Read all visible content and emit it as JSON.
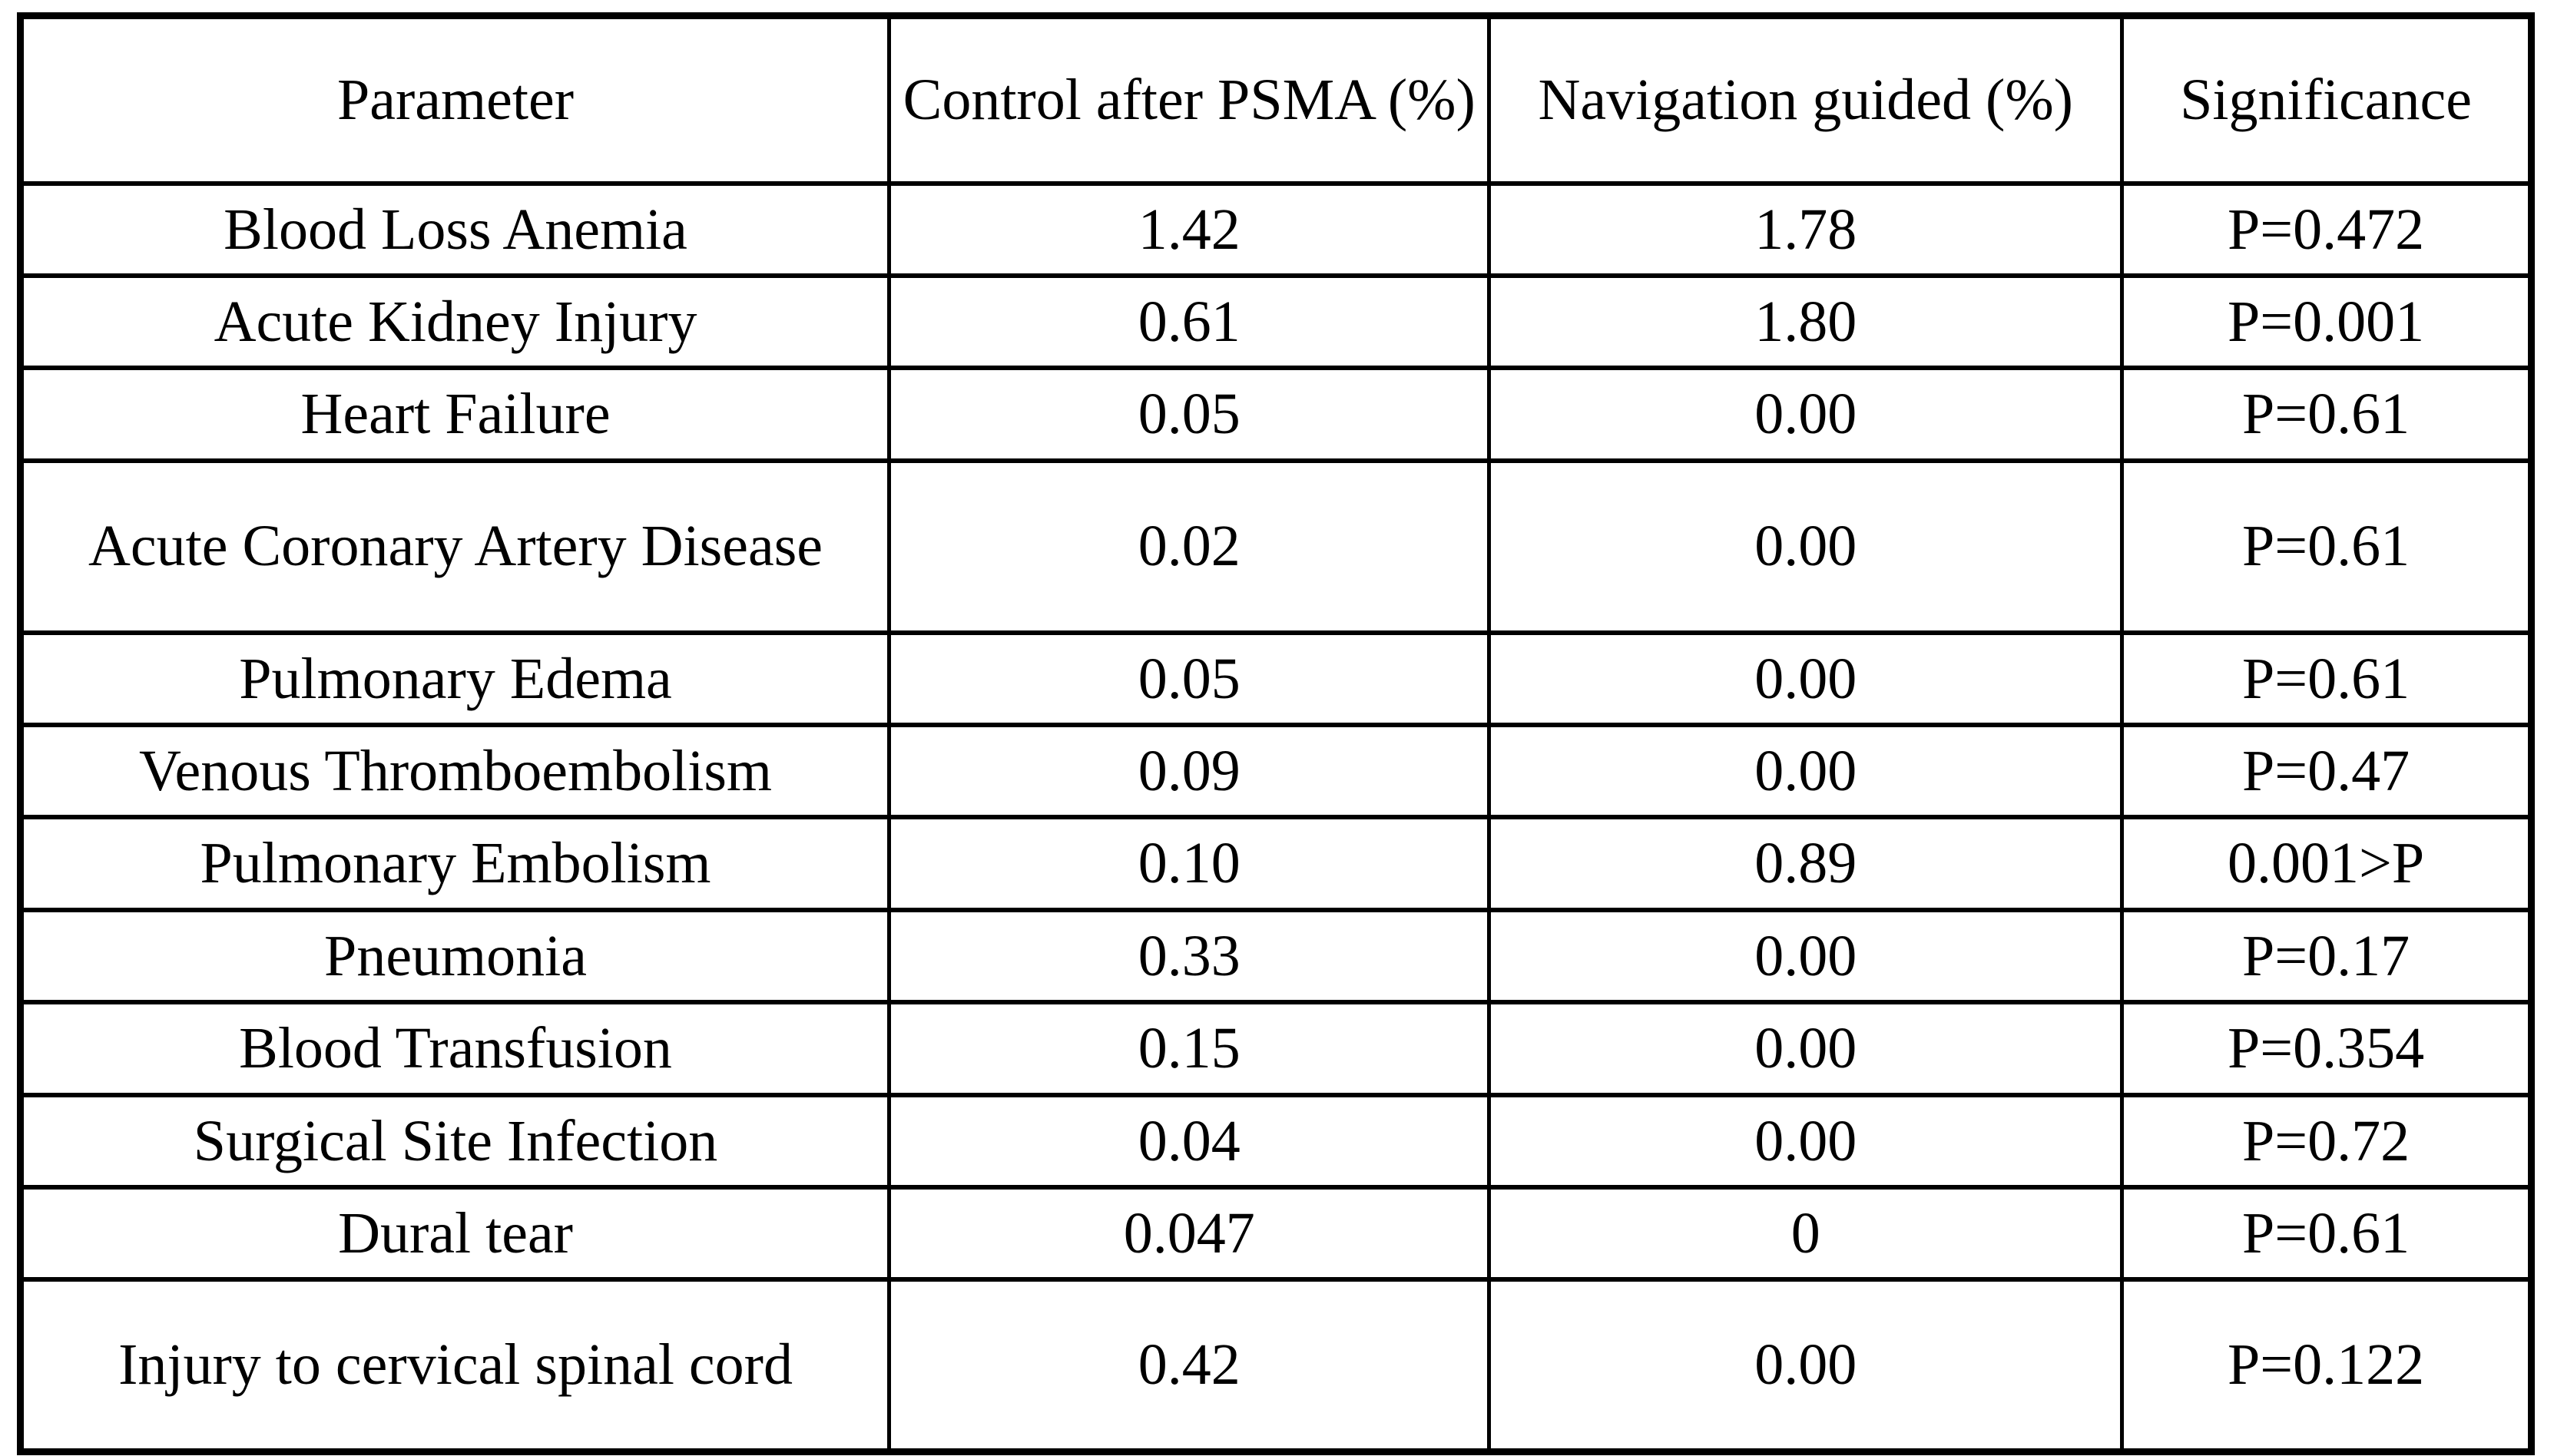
{
  "table": {
    "headers": [
      {
        "label": "Parameter"
      },
      {
        "label": "Control after PSMA (%)"
      },
      {
        "label": "Navigation guided (%)"
      },
      {
        "label": "Significance"
      }
    ],
    "rows": [
      {
        "parameter": "Blood Loss Anemia",
        "control": "1.42",
        "navigation": "1.78",
        "significance": "P=0.472"
      },
      {
        "parameter": "Acute Kidney Injury",
        "control": "0.61",
        "navigation": "1.80",
        "significance": "P=0.001"
      },
      {
        "parameter": "Heart Failure",
        "control": "0.05",
        "navigation": "0.00",
        "significance": "P=0.61"
      },
      {
        "parameter": "Acute Coronary Artery Disease",
        "control": "0.02",
        "navigation": "0.00",
        "significance": "P=0.61"
      },
      {
        "parameter": "Pulmonary Edema",
        "control": "0.05",
        "navigation": "0.00",
        "significance": "P=0.61"
      },
      {
        "parameter": "Venous Thromboembolism",
        "control": "0.09",
        "navigation": "0.00",
        "significance": "P=0.47"
      },
      {
        "parameter": "Pulmonary Embolism",
        "control": "0.10",
        "navigation": "0.89",
        "significance": "0.001>P"
      },
      {
        "parameter": "Pneumonia",
        "control": "0.33",
        "navigation": "0.00",
        "significance": "P=0.17"
      },
      {
        "parameter": "Blood Transfusion",
        "control": "0.15",
        "navigation": "0.00",
        "significance": "P=0.354"
      },
      {
        "parameter": "Surgical Site Infection",
        "control": "0.04",
        "navigation": "0.00",
        "significance": "P=0.72"
      },
      {
        "parameter": "Dural tear",
        "control": "0.047",
        "navigation": "0",
        "significance": "P=0.61"
      },
      {
        "parameter": "Injury to cervical spinal cord",
        "control": "0.42",
        "navigation": "0.00",
        "significance": "P=0.122"
      }
    ]
  },
  "chart_data": {
    "type": "table",
    "columns": [
      "Parameter",
      "Control after PSMA (%)",
      "Navigation guided (%)",
      "Significance"
    ],
    "rows": [
      [
        "Blood Loss Anemia",
        1.42,
        1.78,
        "P=0.472"
      ],
      [
        "Acute Kidney Injury",
        0.61,
        1.8,
        "P=0.001"
      ],
      [
        "Heart Failure",
        0.05,
        0.0,
        "P=0.61"
      ],
      [
        "Acute Coronary Artery Disease",
        0.02,
        0.0,
        "P=0.61"
      ],
      [
        "Pulmonary Edema",
        0.05,
        0.0,
        "P=0.61"
      ],
      [
        "Venous Thromboembolism",
        0.09,
        0.0,
        "P=0.47"
      ],
      [
        "Pulmonary Embolism",
        0.1,
        0.89,
        "0.001>P"
      ],
      [
        "Pneumonia",
        0.33,
        0.0,
        "P=0.17"
      ],
      [
        "Blood Transfusion",
        0.15,
        0.0,
        "P=0.354"
      ],
      [
        "Surgical Site Infection",
        0.04,
        0.0,
        "P=0.72"
      ],
      [
        "Dural tear",
        0.047,
        0,
        "P=0.61"
      ],
      [
        "Injury to cervical spinal cord",
        0.42,
        0.0,
        "P=0.122"
      ]
    ]
  },
  "colors": {
    "border": "#000000",
    "background": "#ffffff",
    "text": "#000000"
  }
}
